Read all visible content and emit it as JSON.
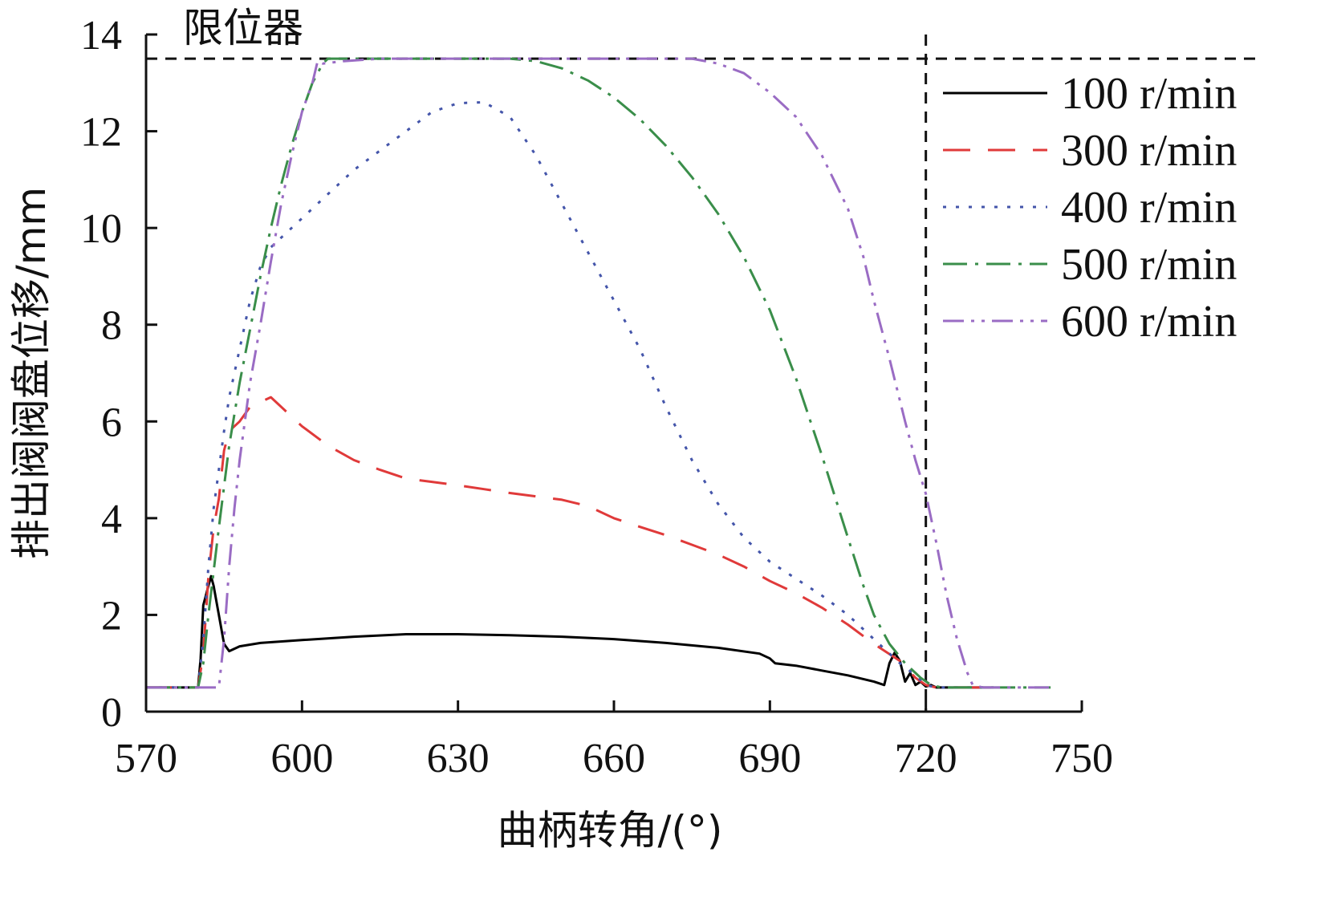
{
  "chart_data": {
    "type": "line",
    "xlabel": "曲柄转角/(°)",
    "ylabel": "排出阀阀盘位移/mm",
    "xlim": [
      570,
      750
    ],
    "ylim": [
      0,
      14
    ],
    "xticks": [
      570,
      600,
      630,
      660,
      690,
      720,
      750
    ],
    "yticks": [
      0,
      2,
      4,
      6,
      8,
      10,
      12,
      14
    ],
    "legend_position": "top-right",
    "annotations": [
      {
        "text": "限位器",
        "kind": "horizontal-reference",
        "y": 13.5
      },
      {
        "text": "",
        "kind": "vertical-reference",
        "x": 720
      }
    ],
    "series": [
      {
        "name": "100 r/min",
        "color": "#000000",
        "dash": "solid",
        "points": [
          [
            570,
            0.5
          ],
          [
            580,
            0.5
          ],
          [
            580.5,
            1.1
          ],
          [
            581,
            2.2
          ],
          [
            582,
            2.6
          ],
          [
            582.5,
            2.8
          ],
          [
            583,
            2.6
          ],
          [
            584,
            2.0
          ],
          [
            585,
            1.4
          ],
          [
            586,
            1.25
          ],
          [
            588,
            1.35
          ],
          [
            592,
            1.42
          ],
          [
            600,
            1.48
          ],
          [
            610,
            1.55
          ],
          [
            620,
            1.6
          ],
          [
            630,
            1.6
          ],
          [
            640,
            1.58
          ],
          [
            650,
            1.55
          ],
          [
            660,
            1.5
          ],
          [
            670,
            1.42
          ],
          [
            680,
            1.32
          ],
          [
            688,
            1.2
          ],
          [
            690,
            1.1
          ],
          [
            691,
            1.0
          ],
          [
            695,
            0.95
          ],
          [
            700,
            0.85
          ],
          [
            705,
            0.75
          ],
          [
            710,
            0.62
          ],
          [
            712,
            0.55
          ],
          [
            713,
            1.0
          ],
          [
            714,
            1.22
          ],
          [
            715,
            1.05
          ],
          [
            716,
            0.62
          ],
          [
            717,
            0.8
          ],
          [
            718,
            0.55
          ],
          [
            719,
            0.62
          ],
          [
            720,
            0.52
          ],
          [
            721,
            0.55
          ],
          [
            722,
            0.5
          ],
          [
            733,
            0.5
          ]
        ]
      },
      {
        "name": "300 r/min",
        "color": "#e03a3a",
        "dash": "long-dash",
        "points": [
          [
            570,
            0.5
          ],
          [
            580,
            0.5
          ],
          [
            581,
            1.2
          ],
          [
            582,
            2.8
          ],
          [
            583,
            3.8
          ],
          [
            584,
            4.4
          ],
          [
            585,
            5.4
          ],
          [
            586,
            5.8
          ],
          [
            588,
            6.0
          ],
          [
            590,
            6.3
          ],
          [
            594,
            6.5
          ],
          [
            597,
            6.2
          ],
          [
            600,
            5.9
          ],
          [
            605,
            5.5
          ],
          [
            610,
            5.2
          ],
          [
            615,
            5.0
          ],
          [
            620,
            4.82
          ],
          [
            625,
            4.75
          ],
          [
            630,
            4.68
          ],
          [
            635,
            4.6
          ],
          [
            640,
            4.52
          ],
          [
            645,
            4.45
          ],
          [
            650,
            4.38
          ],
          [
            655,
            4.25
          ],
          [
            660,
            4.0
          ],
          [
            665,
            3.82
          ],
          [
            670,
            3.65
          ],
          [
            675,
            3.45
          ],
          [
            680,
            3.25
          ],
          [
            685,
            3.0
          ],
          [
            690,
            2.7
          ],
          [
            695,
            2.45
          ],
          [
            700,
            2.15
          ],
          [
            705,
            1.8
          ],
          [
            710,
            1.4
          ],
          [
            715,
            1.05
          ],
          [
            718,
            0.7
          ],
          [
            720,
            0.55
          ],
          [
            722,
            0.5
          ],
          [
            733,
            0.5
          ]
        ]
      },
      {
        "name": "400 r/min",
        "color": "#4455aa",
        "dash": "dotted",
        "points": [
          [
            570,
            0.5
          ],
          [
            580,
            0.5
          ],
          [
            581,
            1.5
          ],
          [
            582,
            3.0
          ],
          [
            583,
            4.2
          ],
          [
            584,
            5.0
          ],
          [
            585,
            5.8
          ],
          [
            586,
            6.5
          ],
          [
            588,
            7.5
          ],
          [
            590,
            8.5
          ],
          [
            592,
            9.2
          ],
          [
            594,
            9.6
          ],
          [
            596,
            9.8
          ],
          [
            600,
            10.2
          ],
          [
            605,
            10.7
          ],
          [
            610,
            11.2
          ],
          [
            615,
            11.6
          ],
          [
            620,
            12.0
          ],
          [
            625,
            12.4
          ],
          [
            630,
            12.58
          ],
          [
            635,
            12.6
          ],
          [
            640,
            12.3
          ],
          [
            645,
            11.5
          ],
          [
            650,
            10.5
          ],
          [
            655,
            9.5
          ],
          [
            660,
            8.5
          ],
          [
            665,
            7.5
          ],
          [
            670,
            6.3
          ],
          [
            675,
            5.2
          ],
          [
            680,
            4.3
          ],
          [
            685,
            3.6
          ],
          [
            690,
            3.1
          ],
          [
            695,
            2.75
          ],
          [
            700,
            2.4
          ],
          [
            705,
            2.0
          ],
          [
            710,
            1.5
          ],
          [
            715,
            1.0
          ],
          [
            718,
            0.75
          ],
          [
            720,
            0.55
          ],
          [
            722,
            0.5
          ],
          [
            733,
            0.5
          ]
        ]
      },
      {
        "name": "500 r/min",
        "color": "#3a8e4a",
        "dash": "dash-dot",
        "points": [
          [
            570,
            0.5
          ],
          [
            580,
            0.5
          ],
          [
            581,
            1.0
          ],
          [
            582,
            2.0
          ],
          [
            584,
            3.8
          ],
          [
            586,
            5.5
          ],
          [
            588,
            6.8
          ],
          [
            590,
            7.9
          ],
          [
            592,
            9.0
          ],
          [
            594,
            10.0
          ],
          [
            596,
            10.9
          ],
          [
            598,
            11.7
          ],
          [
            600,
            12.4
          ],
          [
            602,
            13.0
          ],
          [
            604,
            13.4
          ],
          [
            605,
            13.5
          ],
          [
            615,
            13.5
          ],
          [
            630,
            13.5
          ],
          [
            640,
            13.5
          ],
          [
            645,
            13.45
          ],
          [
            650,
            13.3
          ],
          [
            655,
            13.05
          ],
          [
            660,
            12.7
          ],
          [
            665,
            12.25
          ],
          [
            670,
            11.7
          ],
          [
            675,
            11.05
          ],
          [
            680,
            10.3
          ],
          [
            685,
            9.4
          ],
          [
            690,
            8.3
          ],
          [
            695,
            6.9
          ],
          [
            700,
            5.3
          ],
          [
            705,
            3.6
          ],
          [
            708,
            2.6
          ],
          [
            710,
            2.0
          ],
          [
            713,
            1.4
          ],
          [
            716,
            1.0
          ],
          [
            719,
            0.7
          ],
          [
            721,
            0.55
          ],
          [
            723,
            0.5
          ],
          [
            744,
            0.5
          ]
        ]
      },
      {
        "name": "600 r/min",
        "color": "#9a6cc4",
        "dash": "dash-dot-dot",
        "points": [
          [
            570,
            0.5
          ],
          [
            584,
            0.5
          ],
          [
            585,
            1.5
          ],
          [
            586,
            3.0
          ],
          [
            587,
            4.2
          ],
          [
            588,
            5.2
          ],
          [
            589,
            6.0
          ],
          [
            590,
            6.8
          ],
          [
            592,
            8.0
          ],
          [
            594,
            9.3
          ],
          [
            596,
            10.5
          ],
          [
            598,
            11.5
          ],
          [
            600,
            12.4
          ],
          [
            602,
            13.0
          ],
          [
            603,
            13.45
          ],
          [
            604,
            13.4
          ],
          [
            608,
            13.45
          ],
          [
            615,
            13.5
          ],
          [
            640,
            13.5
          ],
          [
            660,
            13.5
          ],
          [
            675,
            13.5
          ],
          [
            680,
            13.4
          ],
          [
            685,
            13.2
          ],
          [
            690,
            12.8
          ],
          [
            695,
            12.3
          ],
          [
            700,
            11.5
          ],
          [
            705,
            10.4
          ],
          [
            708,
            9.4
          ],
          [
            710,
            8.5
          ],
          [
            713,
            7.3
          ],
          [
            716,
            6.0
          ],
          [
            718,
            5.2
          ],
          [
            720,
            4.5
          ],
          [
            722,
            3.5
          ],
          [
            724,
            2.4
          ],
          [
            726,
            1.5
          ],
          [
            728,
            0.8
          ],
          [
            729,
            0.55
          ],
          [
            731,
            0.5
          ],
          [
            744,
            0.5
          ]
        ]
      }
    ]
  }
}
